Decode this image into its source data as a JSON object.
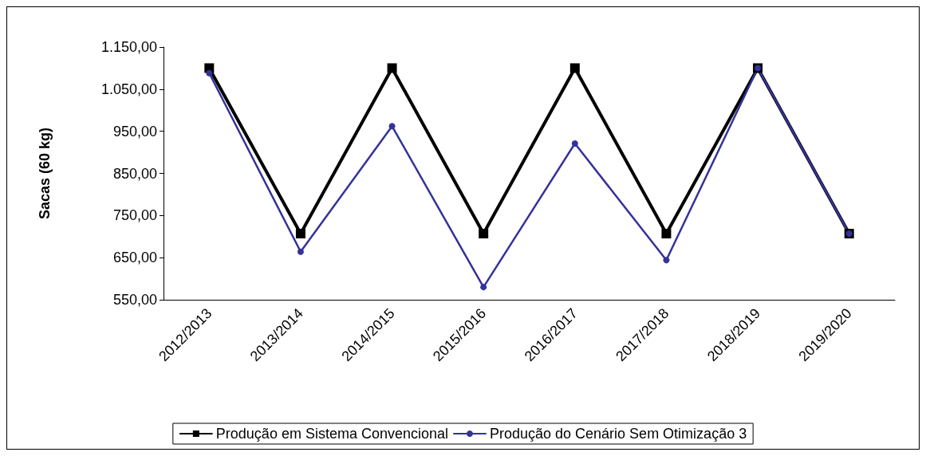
{
  "chart_data": {
    "type": "line",
    "ylabel": "Sacas (60 kg)",
    "categories": [
      "2012/2013",
      "2013/2014",
      "2014/2015",
      "2015/2016",
      "2016/2017",
      "2017/2018",
      "2018/2019",
      "2019/2020"
    ],
    "series": [
      {
        "name": "Produção em Sistema Convencional",
        "color": "#000000",
        "marker": "square",
        "values": [
          1100,
          707,
          1100,
          707,
          1100,
          707,
          1100,
          707
        ]
      },
      {
        "name": "Produção do Cenário Sem Otimização 3",
        "color": "#333399",
        "marker": "circle",
        "values": [
          1088,
          664,
          962,
          580,
          921,
          644,
          1100,
          707
        ]
      }
    ],
    "ylim": [
      550,
      1150
    ],
    "yticks": [
      {
        "value": 550,
        "label": "550,00"
      },
      {
        "value": 650,
        "label": "650,00"
      },
      {
        "value": 750,
        "label": "750,00"
      },
      {
        "value": 850,
        "label": "850,00"
      },
      {
        "value": 950,
        "label": "950,00"
      },
      {
        "value": 1050,
        "label": "1.050,00"
      },
      {
        "value": 1150,
        "label": "1.150,00"
      }
    ],
    "grid": false,
    "legend": "bottom",
    "line_style": "solid"
  }
}
